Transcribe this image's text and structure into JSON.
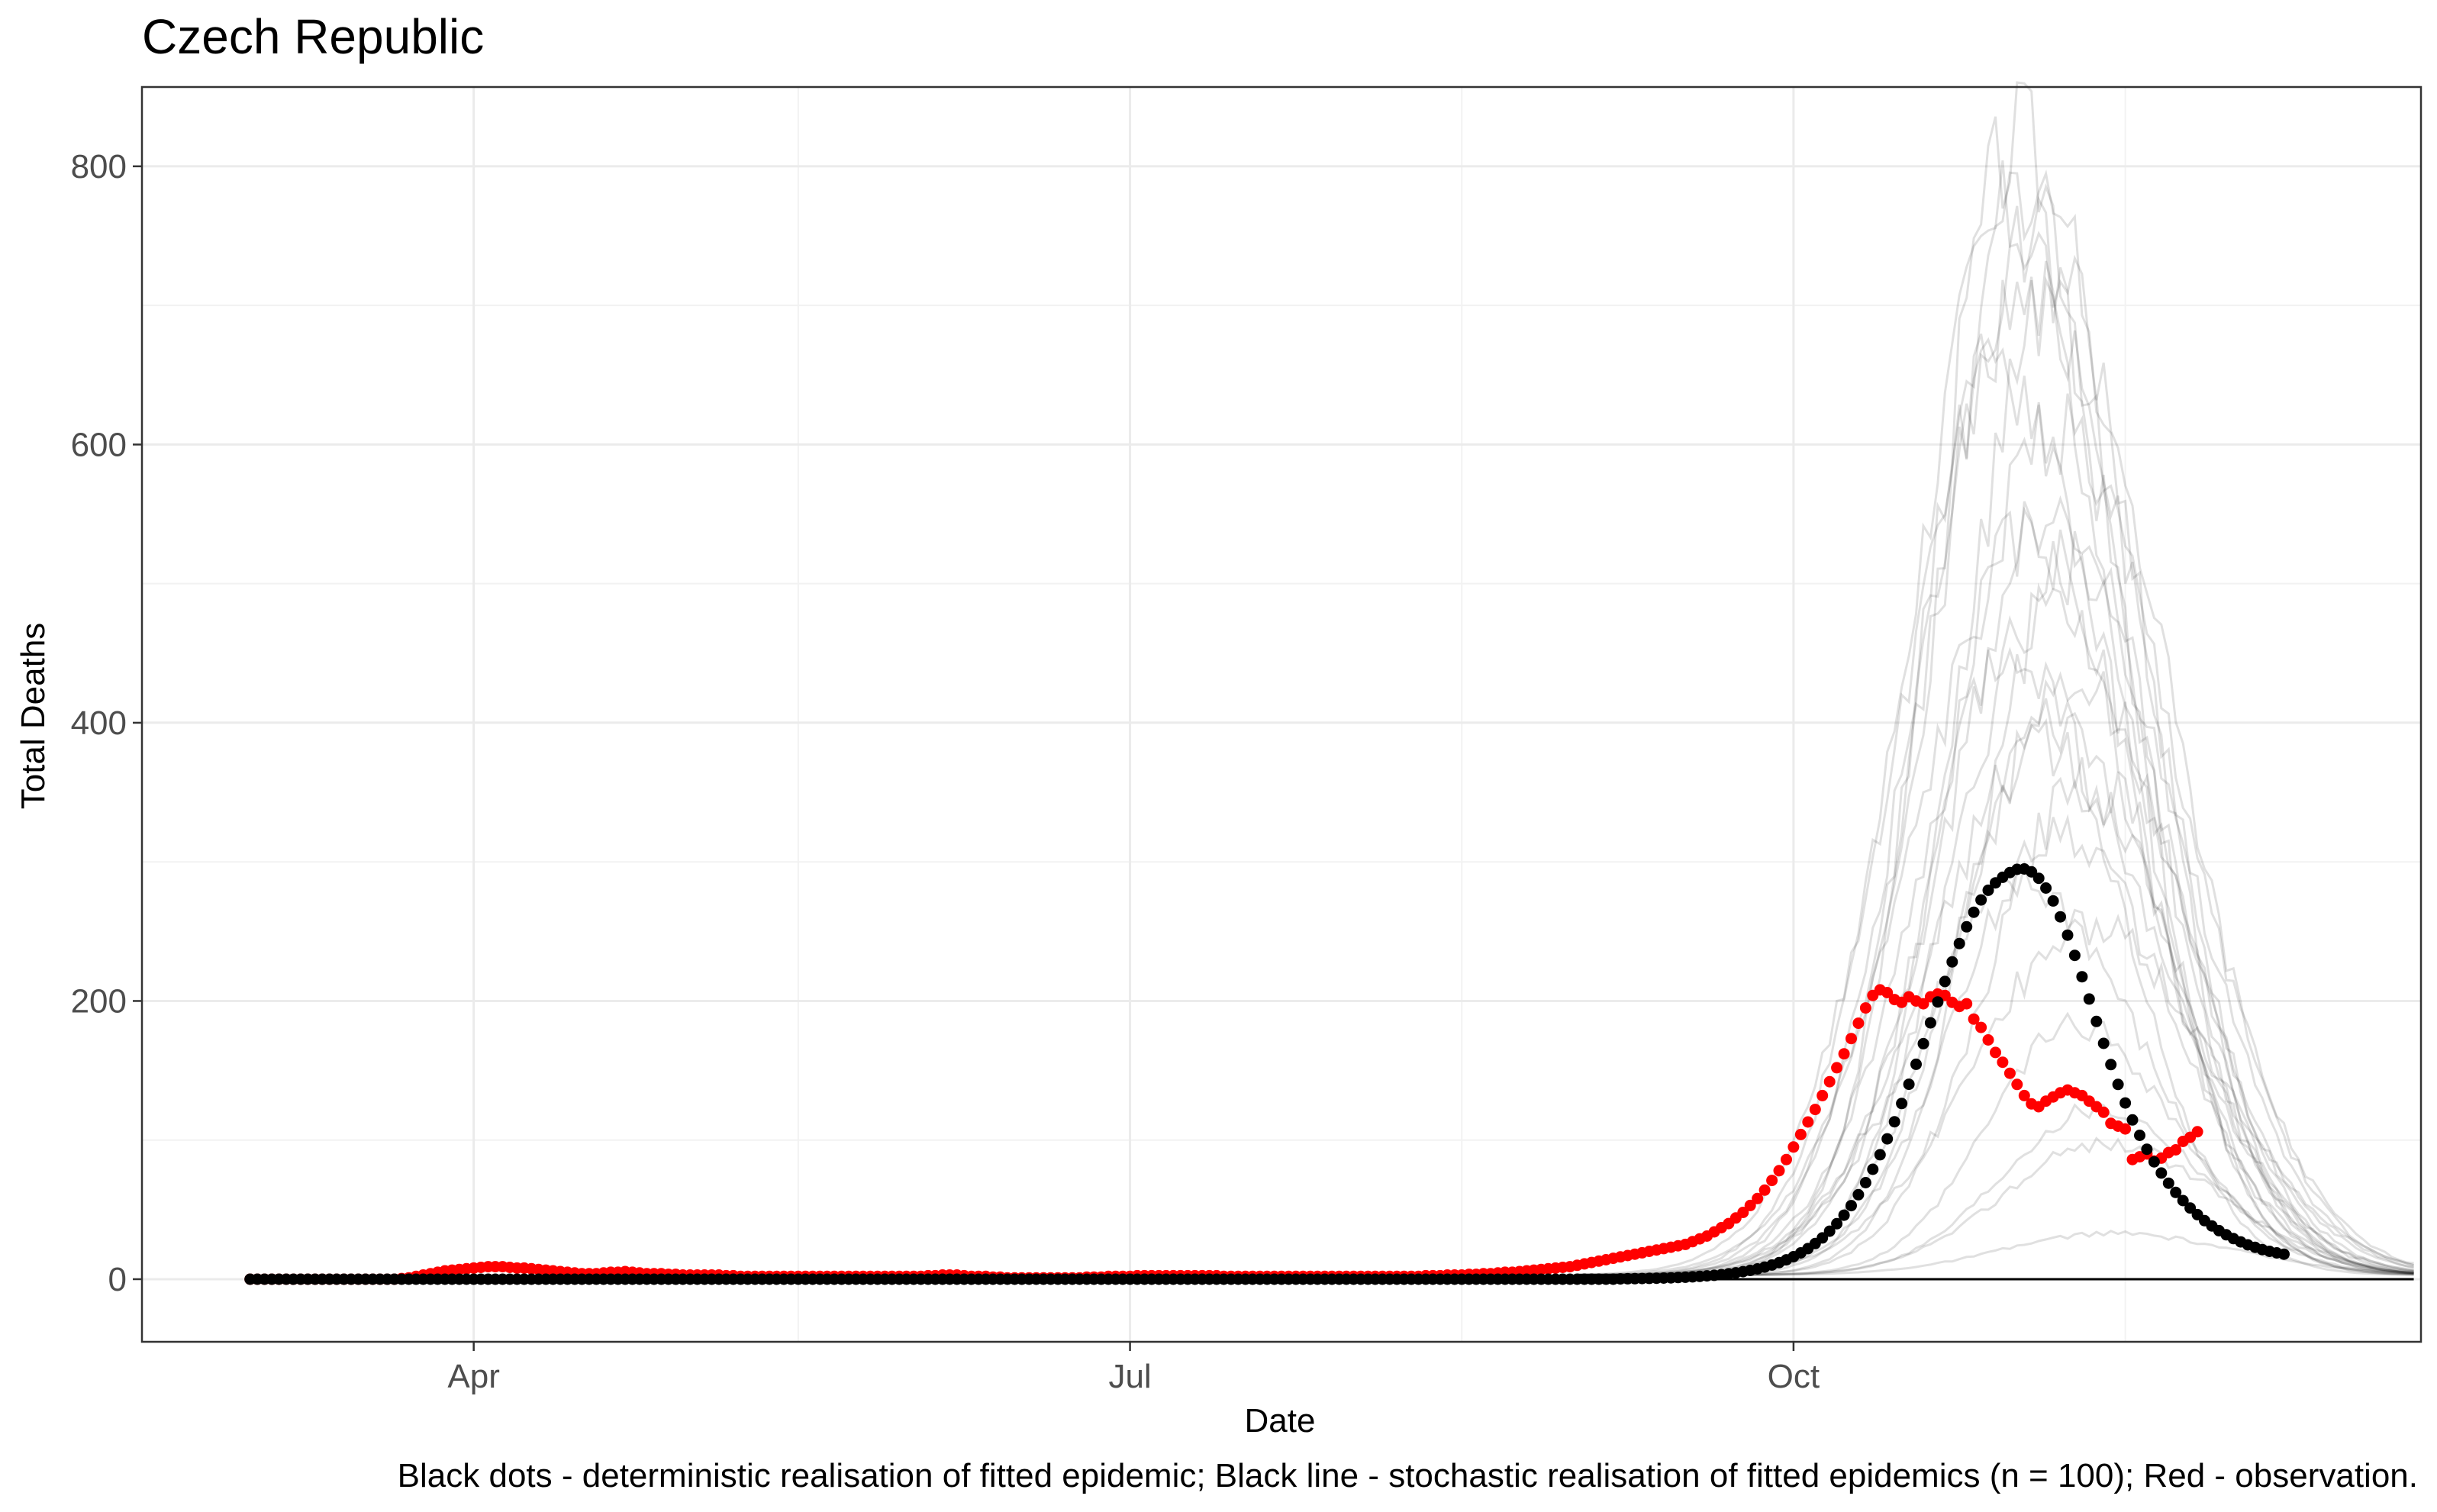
{
  "chart_data": {
    "type": "line",
    "title": "Czech Republic",
    "xlabel": "Date",
    "ylabel": "Total Deaths",
    "caption": "Black dots - deterministic realisation of fitted epidemic; Black line - stochastic realisation of fitted epidemics (n = 100); Red - observation.",
    "x_range": [
      "2020-02-15",
      "2020-12-27"
    ],
    "ylim": [
      -45,
      857
    ],
    "x_ticks": [
      {
        "date": "2020-04-01",
        "label": "Apr"
      },
      {
        "date": "2020-07-01",
        "label": "Jul"
      },
      {
        "date": "2020-10-01",
        "label": "Oct"
      }
    ],
    "y_ticks": [
      0,
      200,
      400,
      600,
      800
    ],
    "grid": true,
    "legend": "none",
    "colors": {
      "deterministic": "#000000",
      "stochastic": "#000000",
      "observation": "#ff0000",
      "grid": "#ebebeb",
      "panel_border": "#333333"
    },
    "series": [
      {
        "name": "Black dots - deterministic realisation of fitted epidemic",
        "style": "points",
        "x_start": "2020-03-01",
        "x_step_days": 1,
        "values_note": "daily",
        "values": [
          0,
          0,
          0,
          0,
          0,
          0,
          0,
          0,
          0,
          0,
          0,
          0,
          0,
          0,
          0,
          0,
          0,
          0,
          0,
          0,
          0,
          0,
          0,
          0,
          0,
          0,
          0,
          0,
          0,
          0,
          0,
          0,
          0,
          0,
          0,
          0,
          0,
          0,
          0,
          0,
          0,
          0,
          0,
          0,
          0,
          0,
          0,
          0,
          0,
          0,
          0,
          0,
          0,
          0,
          0,
          0,
          0,
          0,
          0,
          0,
          0,
          0,
          0,
          0,
          0,
          0,
          0,
          0,
          0,
          0,
          0,
          0,
          0,
          0,
          0,
          0,
          0,
          0,
          0,
          0,
          0,
          0,
          0,
          0,
          0,
          0,
          0,
          0,
          0,
          0,
          0,
          0,
          0,
          0,
          0,
          0,
          0,
          0,
          0,
          0,
          0,
          0,
          0,
          0,
          0,
          0,
          0,
          0,
          0,
          0,
          0,
          0,
          0,
          0,
          0,
          0,
          0,
          0,
          0,
          0,
          0,
          0,
          0,
          0,
          0,
          0,
          0,
          0,
          0,
          0,
          0,
          0,
          0,
          0,
          0,
          0,
          0,
          0,
          0,
          0,
          0,
          0,
          0,
          0,
          0,
          0,
          0,
          0,
          0,
          0,
          0,
          0,
          0,
          0,
          0,
          0,
          0,
          0,
          0,
          0,
          0,
          0,
          0,
          0,
          0,
          0,
          0,
          0,
          0,
          0,
          0,
          0,
          0,
          0,
          0,
          0,
          0,
          0,
          0,
          0,
          0,
          0,
          0,
          0,
          0,
          0,
          0,
          0,
          0,
          0,
          0.2,
          0.3,
          0.4,
          0.5,
          0.6,
          0.7,
          0.8,
          1,
          1.2,
          1.4,
          1.7,
          2,
          2.4,
          2.8,
          3.3,
          3.9,
          4.6,
          5.4,
          6.3,
          7.4,
          8.7,
          10.2,
          11.9,
          13.9,
          16.2,
          18.9,
          22,
          25.6,
          29.7,
          34.5,
          39.9,
          46,
          52.9,
          60.7,
          69.4,
          79,
          89.5,
          100.9,
          113.2,
          126.3,
          140.1,
          154.5,
          169.3,
          184.3,
          199.3,
          214,
          228.1,
          241.3,
          253.3,
          263.8,
          272.6,
          279.6,
          284.9,
          288.9,
          292.3,
          294.6,
          294.9,
          292.8,
          288.2,
          281.2,
          271.9,
          260.5,
          247.3,
          232.8,
          217.4,
          201.4,
          185.3,
          169.5,
          154.3,
          140,
          126.7,
          114.5,
          103.4,
          93.4,
          84.4,
          76.3,
          69,
          62.4,
          56.5,
          51.2,
          46.4,
          42.1,
          38.3,
          34.9,
          31.9,
          29.2,
          26.8,
          24.7,
          22.9,
          21.3,
          20,
          18.9,
          18
        ]
      },
      {
        "name": "Black line - stochastic realisation of fitted epidemics (n = 100)",
        "style": "lines",
        "n_shown": 24,
        "x_start": "2020-09-01",
        "peaks": [
          815,
          790,
          760,
          740,
          700,
          690,
          650,
          610,
          560,
          530,
          510,
          480,
          450,
          430,
          400,
          380,
          350,
          320,
          280,
          250,
          180,
          120,
          95,
          30
        ],
        "peak_dates": [
          "2020-11-01",
          "2020-11-03",
          "2020-10-31",
          "2020-11-04",
          "2020-11-02",
          "2020-11-05",
          "2020-10-30",
          "2020-11-06",
          "2020-11-07",
          "2020-11-03",
          "2020-11-08",
          "2020-11-05",
          "2020-11-01",
          "2020-11-09",
          "2020-11-06",
          "2020-11-04",
          "2020-11-10",
          "2020-11-07",
          "2020-11-02",
          "2020-11-11",
          "2020-11-09",
          "2020-11-12",
          "2020-11-13",
          "2020-11-14"
        ]
      },
      {
        "name": "Red - observation.",
        "style": "points",
        "x_start": "2020-03-01",
        "x_step_days": 1,
        "values": [
          0,
          0,
          0,
          0,
          0,
          0,
          0,
          0,
          0,
          0,
          0,
          0,
          0,
          0,
          0,
          0,
          0,
          0,
          0,
          0,
          0,
          0.5,
          1,
          2,
          3,
          4,
          5,
          6,
          6.5,
          7,
          7.5,
          8,
          8.5,
          9,
          9,
          9,
          8.5,
          8,
          8,
          7.5,
          7,
          6.5,
          6,
          5.5,
          5,
          4.5,
          4,
          4,
          4,
          4.5,
          5,
          5,
          5.5,
          5,
          4.5,
          4,
          4,
          4,
          3.5,
          3.5,
          3,
          3,
          3,
          3,
          3,
          3,
          2.5,
          2.5,
          2,
          2,
          2,
          2,
          2,
          2,
          2,
          2,
          2,
          2,
          2,
          2,
          2,
          2,
          2,
          2,
          2,
          2,
          2,
          2,
          2,
          2,
          2,
          2,
          2,
          2,
          2.5,
          2.5,
          3,
          3,
          3,
          2.5,
          2,
          2,
          2,
          1.5,
          1.5,
          1,
          1,
          1,
          1,
          1,
          1,
          1,
          1,
          1,
          1,
          1,
          1.5,
          1.5,
          1.5,
          2,
          2,
          2,
          2,
          2.5,
          2.5,
          2.5,
          2.5,
          2.5,
          2.5,
          2.5,
          2.5,
          2.5,
          2.5,
          2.5,
          2.5,
          2,
          2,
          2,
          2,
          2,
          2,
          2,
          2,
          2,
          2,
          2,
          2,
          2,
          2,
          2,
          2,
          2,
          2,
          2,
          2,
          2,
          2,
          2,
          2,
          2,
          2,
          2,
          2,
          2.5,
          2.5,
          2.5,
          3,
          3,
          3,
          3.5,
          3.5,
          4,
          4,
          4.5,
          5,
          5,
          5.5,
          6,
          6.5,
          7,
          7.5,
          8,
          8.5,
          9,
          10,
          11,
          12,
          13,
          14,
          15,
          16,
          17,
          18,
          19,
          20,
          21,
          22,
          23,
          24,
          25,
          27,
          29,
          31,
          34,
          37,
          40,
          44,
          48,
          53,
          58,
          64,
          71,
          78,
          86,
          95,
          104,
          113,
          122,
          132,
          142,
          152,
          162,
          173,
          184,
          195,
          204,
          208,
          206,
          201,
          199,
          203,
          200,
          198,
          203,
          205,
          204,
          199,
          196,
          198,
          187,
          181,
          172,
          163,
          156,
          148,
          140,
          132,
          126,
          124,
          128,
          131,
          134,
          136,
          134,
          132,
          128,
          124,
          120,
          112,
          110,
          108,
          86,
          88,
          90,
          85,
          87,
          91,
          93,
          99,
          102,
          106
        ]
      }
    ]
  }
}
